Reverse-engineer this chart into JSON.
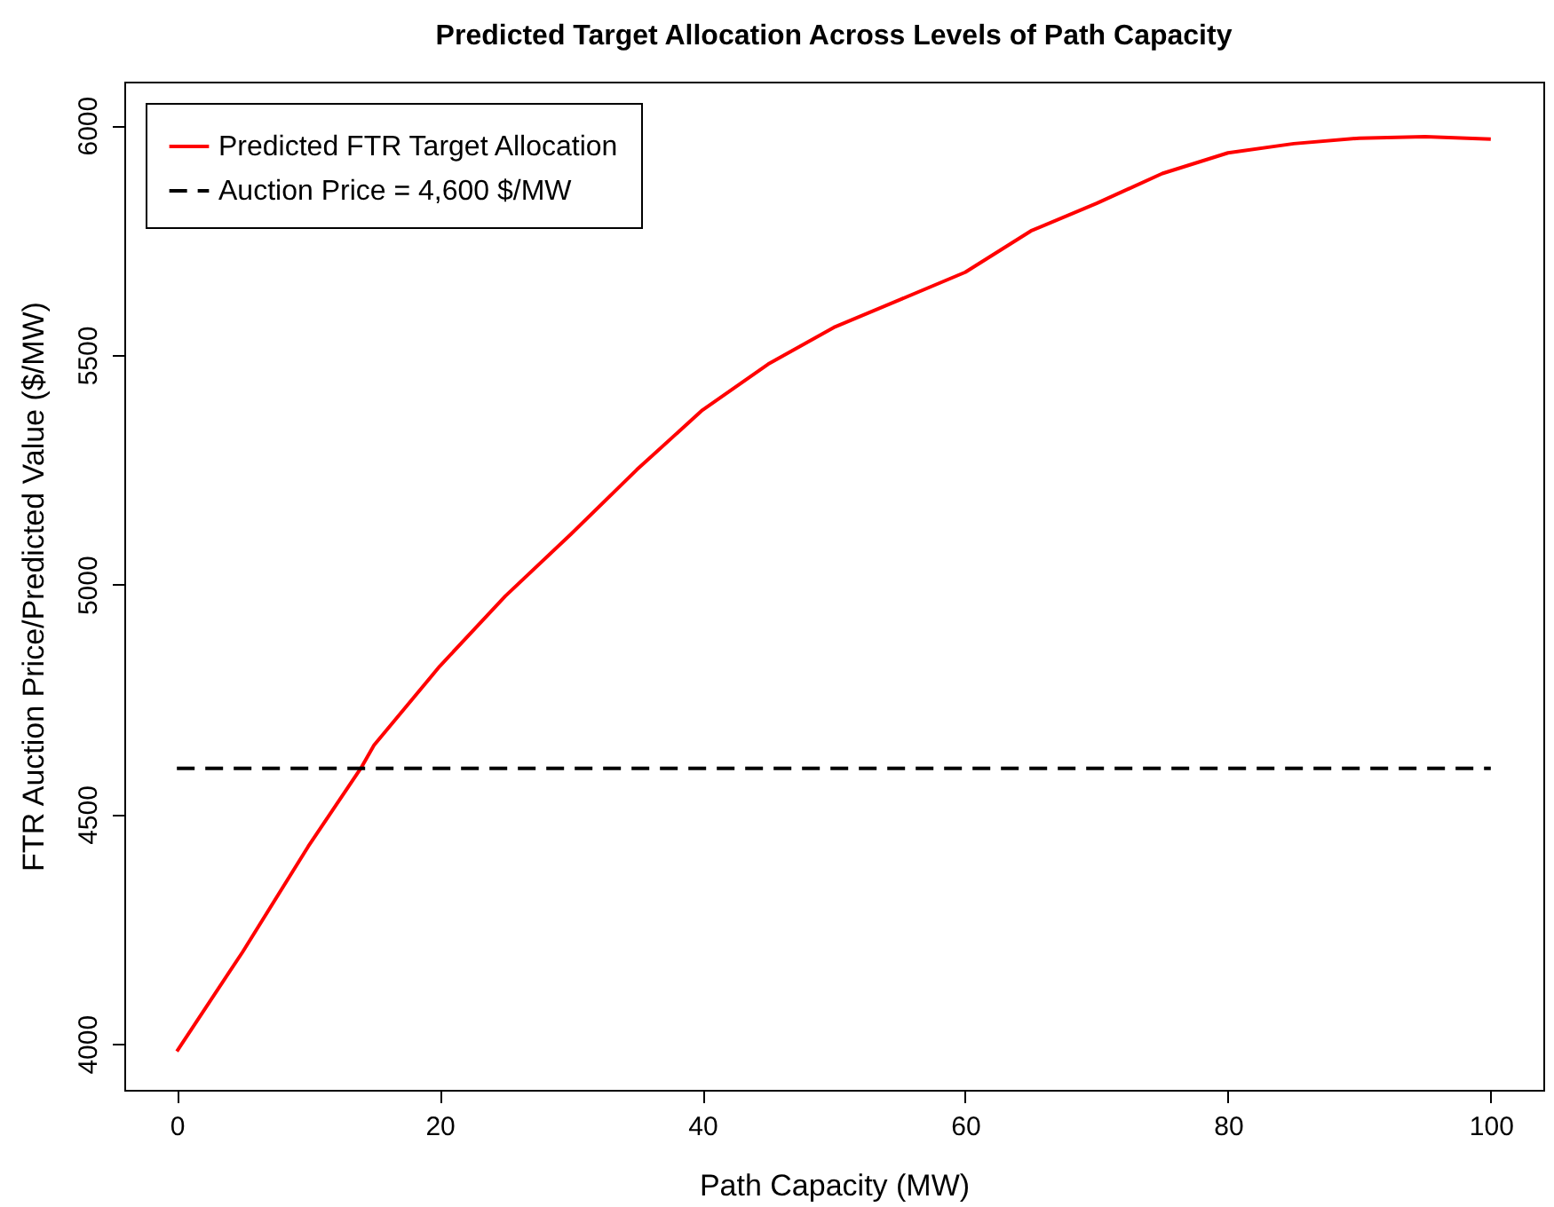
{
  "chart_data": {
    "type": "line",
    "title": "Predicted Target Allocation Across Levels of Path Capacity",
    "xlabel": "Path Capacity (MW)",
    "ylabel": "FTR Auction Price/Predicted Value ($/MW)",
    "xlim": [
      -4,
      104
    ],
    "ylim": [
      3900,
      6095
    ],
    "xticks": [
      0,
      20,
      40,
      60,
      80,
      100
    ],
    "yticks": [
      4000,
      4500,
      5000,
      5500,
      6000
    ],
    "legend": "top left",
    "series": [
      {
        "name": "Predicted FTR Target Allocation",
        "color": "#ff0000",
        "type": "line",
        "line_style": "solid",
        "x": [
          0,
          5,
          10,
          14,
          15,
          20,
          25,
          30,
          35,
          40,
          45,
          50,
          55,
          60,
          65,
          70,
          75,
          80,
          85,
          90,
          95,
          100
        ],
        "values": [
          3984,
          4200,
          4430,
          4600,
          4650,
          4822,
          4975,
          5110,
          5250,
          5380,
          5480,
          5560,
          5620,
          5680,
          5770,
          5830,
          5895,
          5940,
          5960,
          5972,
          5975,
          5970
        ]
      },
      {
        "name": "Auction Price = 4,600 $/MW",
        "color": "#000000",
        "type": "line",
        "line_style": "dashed",
        "x": [
          0,
          100
        ],
        "values": [
          4600,
          4600
        ]
      }
    ]
  }
}
